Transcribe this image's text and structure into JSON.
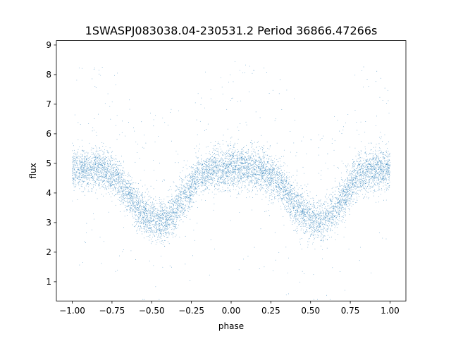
{
  "chart_data": {
    "type": "scatter",
    "title": "1SWASPJ083038.04-230531.2 Period 36866.47266s",
    "xlabel": "phase",
    "ylabel": "flux",
    "xlim": [
      -1.1,
      1.1
    ],
    "ylim": [
      0.35,
      9.15
    ],
    "x_ticks": [
      -1.0,
      -0.75,
      -0.5,
      -0.25,
      0.0,
      0.25,
      0.5,
      0.75,
      1.0
    ],
    "x_tick_labels": [
      "−1.00",
      "−0.75",
      "−0.50",
      "−0.25",
      "0.00",
      "0.25",
      "0.50",
      "0.75",
      "1.00"
    ],
    "y_ticks": [
      1,
      2,
      3,
      4,
      5,
      6,
      7,
      8,
      9
    ],
    "y_tick_labels": [
      "1",
      "2",
      "3",
      "4",
      "5",
      "6",
      "7",
      "8",
      "9"
    ],
    "grid": false,
    "legend": "none",
    "marker_color": "#1f77b4",
    "series": [
      {
        "x": [
          -1.0,
          -0.9,
          -0.8,
          -0.7,
          -0.6,
          -0.5,
          -0.45,
          -0.4,
          -0.3,
          -0.2,
          -0.1,
          0.0,
          0.1,
          0.2,
          0.3,
          0.4,
          0.5,
          0.55,
          0.6,
          0.7,
          0.8,
          0.9,
          1.0
        ],
        "y": [
          4.8,
          4.85,
          4.8,
          4.4,
          3.6,
          3.1,
          3.05,
          3.1,
          3.8,
          4.6,
          4.8,
          4.85,
          4.85,
          4.7,
          4.4,
          3.6,
          3.1,
          3.05,
          3.1,
          3.8,
          4.6,
          4.8,
          4.8
        ],
        "scatter_sd": 0.35,
        "point_count": 9000
      }
    ]
  }
}
